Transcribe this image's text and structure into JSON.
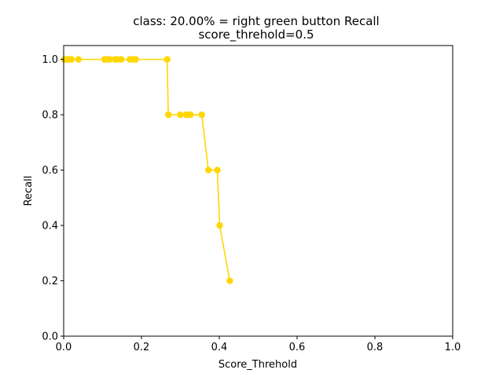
{
  "chart_data": {
    "type": "line",
    "title_line1": "class: 20.00% = right green button Recall",
    "title_line2": "score_threhold=0.5",
    "xlabel": "Score_Threhold",
    "ylabel": "Recall",
    "xlim": [
      0.0,
      1.0
    ],
    "ylim": [
      0.0,
      1.05
    ],
    "xticks": [
      "0.0",
      "0.2",
      "0.4",
      "0.6",
      "0.8",
      "1.0"
    ],
    "yticks": [
      "0.0",
      "0.2",
      "0.4",
      "0.6",
      "0.8",
      "1.0"
    ],
    "grid": false,
    "series": [
      {
        "color": "#ffd700",
        "x": [
          0.002,
          0.006,
          0.01,
          0.014,
          0.02,
          0.038,
          0.105,
          0.112,
          0.118,
          0.132,
          0.137,
          0.148,
          0.17,
          0.178,
          0.185,
          0.266,
          0.269,
          0.3,
          0.315,
          0.32,
          0.326,
          0.355,
          0.372,
          0.395,
          0.401,
          0.427
        ],
        "y": [
          1.0,
          1.0,
          1.0,
          1.0,
          1.0,
          1.0,
          1.0,
          1.0,
          1.0,
          1.0,
          1.0,
          1.0,
          1.0,
          1.0,
          1.0,
          1.0,
          0.8,
          0.8,
          0.8,
          0.8,
          0.8,
          0.8,
          0.6,
          0.6,
          0.4,
          0.2
        ]
      }
    ]
  }
}
